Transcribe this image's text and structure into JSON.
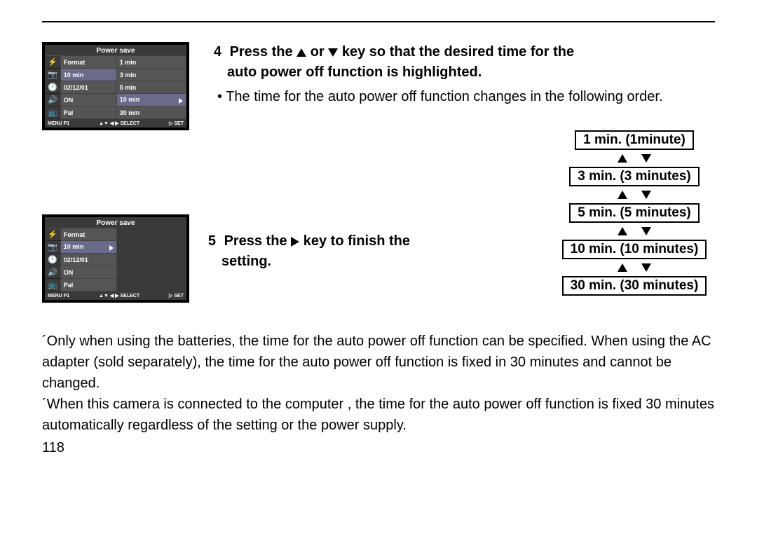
{
  "step4": {
    "num": "4",
    "line1": "Press the",
    "line1b": "or",
    "line1c": "key so that the desired time for the",
    "line2": "auto power off function is highlighted.",
    "bullet": "The time for the auto power off function changes in the following order."
  },
  "step5": {
    "num": "5",
    "line1": "Press the",
    "line1b": "key to finish the",
    "line2": "setting."
  },
  "options": [
    "1 min. (1minute)",
    "3 min. (3 minutes)",
    "5 min. (5 minutes)",
    "10 min. (10 minutes)",
    "30 min. (30 minutes)"
  ],
  "body": {
    "p1": "´Only when using the batteries, the time for the auto power off function can be specified. When using the AC adapter (sold separately), the time for the auto power off function is fixed in 30 minutes and cannot be changed.",
    "p2": "´When this camera is connected to the computer , the time for the auto power off function is fixed 30 minutes automatically regardless of the setting or the power supply."
  },
  "page": "118",
  "lcd1": {
    "title": "Power save",
    "rows": [
      {
        "icon": "flash",
        "label": "Format",
        "val": "1 min",
        "hl": false,
        "vhl": false
      },
      {
        "icon": "camera",
        "label": "10 min",
        "val": "3 min",
        "hl": true,
        "vhl": false
      },
      {
        "icon": "clock",
        "label": "02/12/01",
        "val": "5 min",
        "hl": false,
        "vhl": false
      },
      {
        "icon": "sound",
        "label": "ON",
        "val": "10 min",
        "hl": false,
        "vhl": true,
        "arrow": true
      },
      {
        "icon": "tv",
        "label": "Pal",
        "val": "30 min",
        "hl": false,
        "vhl": false
      }
    ],
    "footer": {
      "left": "MENU P1",
      "mid": "▲▼ ◀ ▶ SELECT",
      "right": "▷ SET"
    }
  },
  "lcd2": {
    "title": "Power save",
    "rows": [
      {
        "icon": "flash",
        "label": "Format"
      },
      {
        "icon": "camera",
        "label": "10 min",
        "hl": true,
        "arrow": true
      },
      {
        "icon": "clock",
        "label": "02/12/01"
      },
      {
        "icon": "sound",
        "label": "ON"
      },
      {
        "icon": "tv",
        "label": "Pal"
      }
    ],
    "footer": {
      "left": "MENU P1",
      "mid": "▲▼ ◀ ▶ SELECT",
      "right": "▷ SET"
    }
  }
}
